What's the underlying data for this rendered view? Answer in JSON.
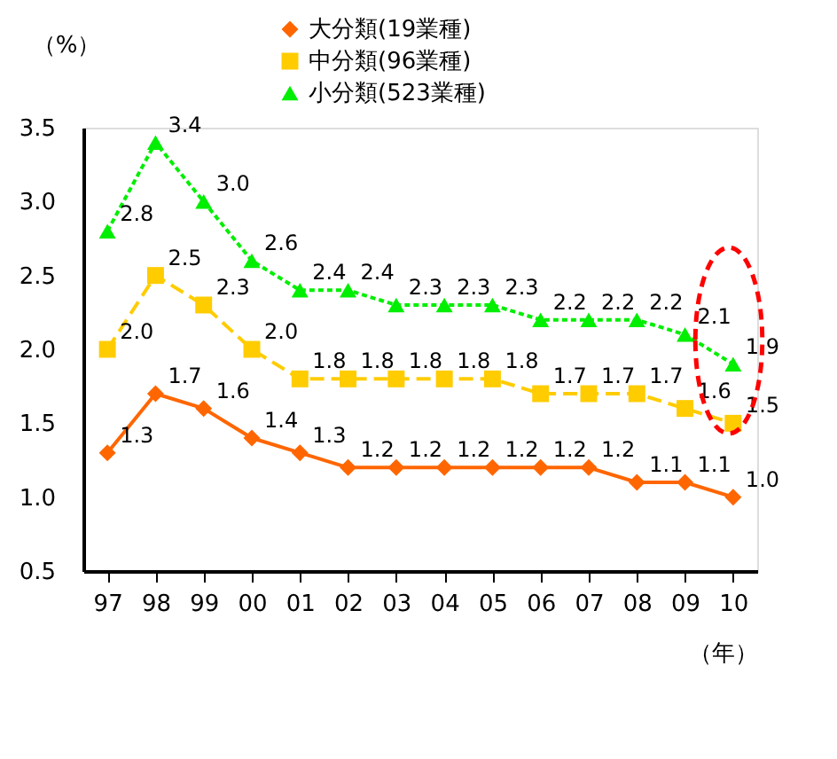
{
  "chart_data": {
    "type": "line",
    "ylabel": "（%）",
    "xlabel": "（年）",
    "categories": [
      "97",
      "98",
      "99",
      "00",
      "01",
      "02",
      "03",
      "04",
      "05",
      "06",
      "07",
      "08",
      "09",
      "10"
    ],
    "series": [
      {
        "name": "大分類(19業種)",
        "color": "#ff6600",
        "marker": "diamond",
        "line_style": "solid",
        "values": [
          1.3,
          1.7,
          1.6,
          1.4,
          1.3,
          1.2,
          1.2,
          1.2,
          1.2,
          1.2,
          1.2,
          1.1,
          1.1,
          1.0
        ],
        "value_labels": [
          "1.3",
          "1.7",
          "1.6",
          "1.4",
          "1.3",
          "1.2",
          "1.2",
          "1.2",
          "1.2",
          "1.2",
          "1.2",
          "1.1",
          "1.1",
          "1.0"
        ]
      },
      {
        "name": "中分類(96業種)",
        "color": "#ffcc00",
        "marker": "square",
        "line_style": "dashed",
        "values": [
          2.0,
          2.5,
          2.3,
          2.0,
          1.8,
          1.8,
          1.8,
          1.8,
          1.8,
          1.7,
          1.7,
          1.7,
          1.6,
          1.5
        ],
        "value_labels": [
          "2.0",
          "2.5",
          "2.3",
          "2.0",
          "1.8",
          "1.8",
          "1.8",
          "1.8",
          "1.8",
          "1.7",
          "1.7",
          "1.7",
          "1.6",
          "1.5"
        ]
      },
      {
        "name": "小分類(523業種)",
        "color": "#00ee00",
        "marker": "triangle",
        "line_style": "dotted",
        "values": [
          2.8,
          3.4,
          3.0,
          2.6,
          2.4,
          2.4,
          2.3,
          2.3,
          2.3,
          2.2,
          2.2,
          2.2,
          2.1,
          1.9
        ],
        "value_labels": [
          "2.8",
          "3.4",
          "3.0",
          "2.6",
          "2.4",
          "2.4",
          "2.3",
          "2.3",
          "2.3",
          "2.2",
          "2.2",
          "2.2",
          "2.1",
          "1.9"
        ]
      }
    ],
    "ylim": [
      0.5,
      3.5
    ],
    "yticks": [
      0.5,
      {
        "value": 1,
        "label": "1.0"
      },
      1.5,
      {
        "value": 2,
        "label": "2.0"
      },
      2.5,
      {
        "value": 3,
        "label": "3.0"
      },
      3.5
    ],
    "grid": false,
    "legend": "top"
  }
}
